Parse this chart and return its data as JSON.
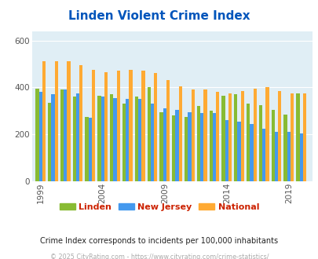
{
  "title": "Linden Violent Crime Index",
  "title_color": "#0055bb",
  "subtitle": "Crime Index corresponds to incidents per 100,000 inhabitants",
  "copyright": "© 2025 CityRating.com - https://www.cityrating.com/crime-statistics/",
  "years": [
    1999,
    2000,
    2001,
    2002,
    2003,
    2004,
    2005,
    2006,
    2007,
    2008,
    2009,
    2010,
    2011,
    2012,
    2013,
    2014,
    2015,
    2016,
    2017,
    2018,
    2019,
    2020
  ],
  "linden": [
    395,
    335,
    390,
    360,
    275,
    365,
    370,
    330,
    360,
    400,
    295,
    280,
    275,
    320,
    300,
    365,
    370,
    330,
    325,
    305,
    285,
    375
  ],
  "new_jersey": [
    380,
    370,
    390,
    375,
    270,
    360,
    355,
    350,
    350,
    330,
    310,
    305,
    295,
    290,
    290,
    260,
    255,
    245,
    225,
    210,
    210,
    205
  ],
  "national": [
    510,
    510,
    510,
    495,
    475,
    465,
    470,
    475,
    470,
    460,
    430,
    405,
    390,
    390,
    380,
    375,
    385,
    395,
    400,
    385,
    375,
    375
  ],
  "linden_color": "#88bb33",
  "nj_color": "#4499ee",
  "national_color": "#ffaa33",
  "bg_color": "#e0eef5",
  "ylim": [
    0,
    640
  ],
  "yticks": [
    0,
    200,
    400,
    600
  ],
  "xtick_years": [
    1999,
    2004,
    2009,
    2014,
    2019
  ],
  "bar_width": 0.27,
  "legend_labels": [
    "Linden",
    "New Jersey",
    "National"
  ],
  "legend_text_color": "#cc2200",
  "subtitle_color": "#222222",
  "copyright_color": "#aaaaaa"
}
